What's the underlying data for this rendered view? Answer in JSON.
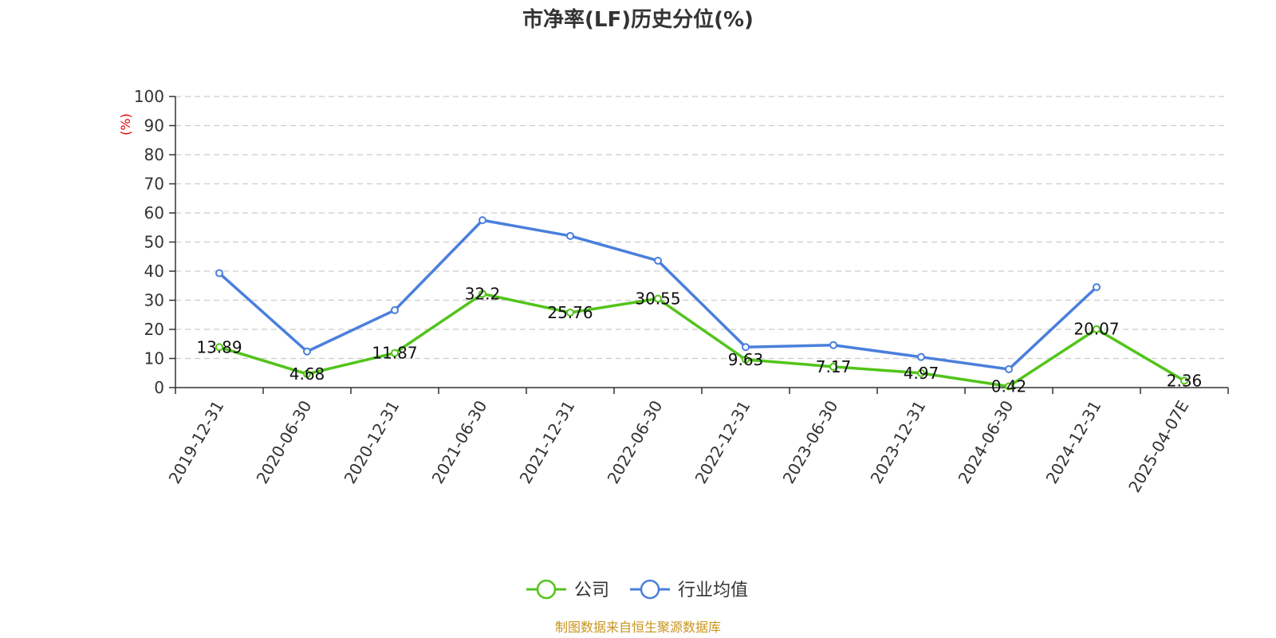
{
  "chart_data": {
    "type": "line",
    "title": "市净率(LF)历史分位(%)",
    "ylabel": "(%)",
    "ylim": [
      0,
      100
    ],
    "yticks": [
      0,
      10,
      20,
      30,
      40,
      50,
      60,
      70,
      80,
      90,
      100
    ],
    "grid": true,
    "legend_position": "bottom",
    "categories": [
      "2019-12-31",
      "2020-06-30",
      "2020-12-31",
      "2021-06-30",
      "2021-12-31",
      "2022-06-30",
      "2022-12-31",
      "2023-06-30",
      "2023-12-31",
      "2024-06-30",
      "2024-12-31",
      "2025-04-07E"
    ],
    "series": [
      {
        "name": "公司",
        "color": "#52c41a",
        "values": [
          13.89,
          4.68,
          11.87,
          32.2,
          25.76,
          30.55,
          9.63,
          7.17,
          4.97,
          0.42,
          20.07,
          2.36
        ],
        "labels": [
          "13.89",
          "4.68",
          "11.87",
          "32.2",
          "25.76",
          "30.55",
          "9.63",
          "7.17",
          "4.97",
          "0.42",
          "20.07",
          "2.36"
        ]
      },
      {
        "name": "行业均值",
        "color": "#4a7fdc",
        "values": [
          39.3,
          12.4,
          26.6,
          57.5,
          52.1,
          43.6,
          13.9,
          14.6,
          10.5,
          6.3,
          34.5,
          null
        ]
      }
    ],
    "source": "制图数据来自恒生聚源数据库"
  }
}
